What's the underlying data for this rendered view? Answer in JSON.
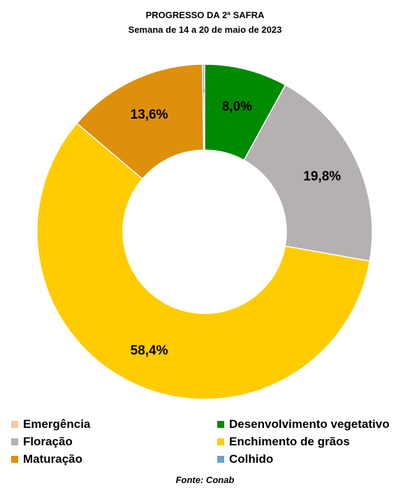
{
  "chart_data": {
    "type": "pie",
    "title": "PROGRESSO DA 2ª SAFRA",
    "subtitle": "Semana de 14 a 20 de maio de 2023",
    "source": "Fonte: Conab",
    "legend_position": "bottom",
    "series": [
      {
        "name": "Emergência",
        "value": 0.0,
        "label": "",
        "color": "#f4c9a6"
      },
      {
        "name": "Desenvolvimento vegetativo",
        "value": 8.0,
        "label": "8,0%",
        "color": "#008a00"
      },
      {
        "name": "Floração",
        "value": 19.8,
        "label": "19,8%",
        "color": "#b5b1b0"
      },
      {
        "name": "Enchimento de grãos",
        "value": 58.4,
        "label": "58,4%",
        "color": "#fecc00"
      },
      {
        "name": "Maturação",
        "value": 13.6,
        "label": "13,6%",
        "color": "#de8f0c"
      },
      {
        "name": "Colhido",
        "value": 0.2,
        "label": "0,2%",
        "color": "#6e9fd1"
      }
    ]
  }
}
